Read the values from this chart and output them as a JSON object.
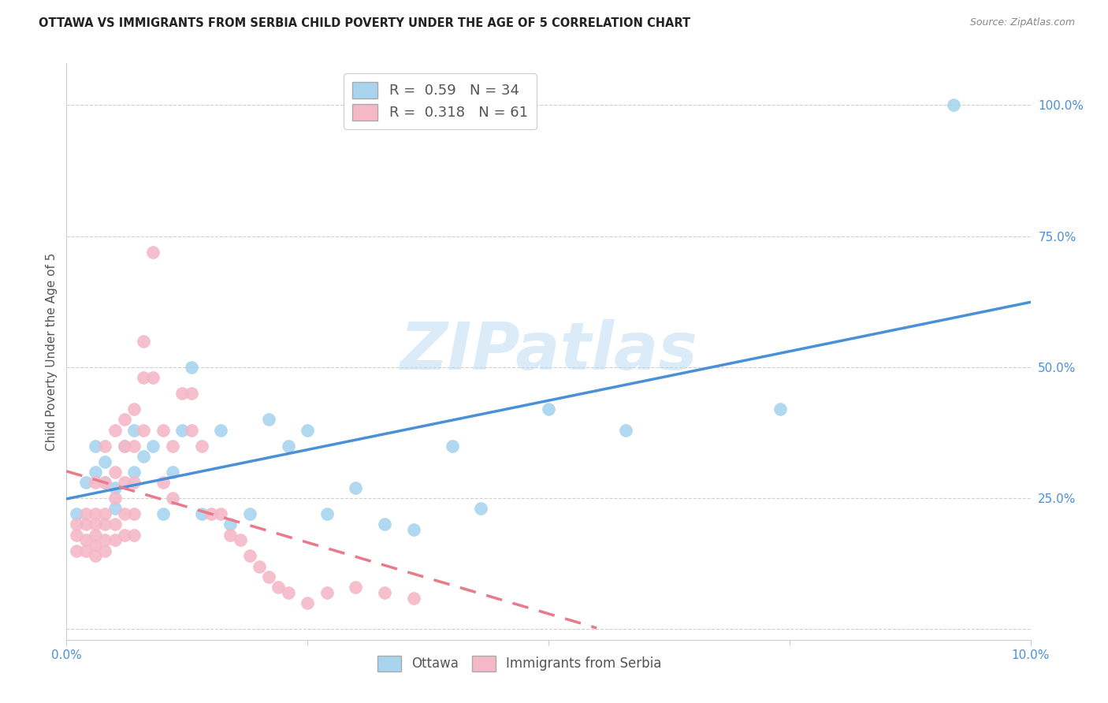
{
  "title": "OTTAWA VS IMMIGRANTS FROM SERBIA CHILD POVERTY UNDER THE AGE OF 5 CORRELATION CHART",
  "source": "Source: ZipAtlas.com",
  "ylabel": "Child Poverty Under the Age of 5",
  "xlim": [
    0.0,
    0.1
  ],
  "ylim": [
    -0.02,
    1.08
  ],
  "yticks": [
    0.0,
    0.25,
    0.5,
    0.75,
    1.0
  ],
  "ytick_labels": [
    "",
    "25.0%",
    "50.0%",
    "75.0%",
    "100.0%"
  ],
  "xticks": [
    0.0,
    0.025,
    0.05,
    0.075,
    0.1
  ],
  "xtick_labels": [
    "0.0%",
    "",
    "",
    "",
    "10.0%"
  ],
  "watermark": "ZIPatlas",
  "ottawa_color": "#a8d4f0",
  "serbia_color": "#f5b8c8",
  "ottawa_line_color": "#4a90d9",
  "serbia_line_color": "#e87a8a",
  "ottawa_R": 0.59,
  "ottawa_N": 34,
  "serbia_R": 0.318,
  "serbia_N": 61,
  "ottawa_scatter_x": [
    0.001,
    0.002,
    0.003,
    0.003,
    0.004,
    0.004,
    0.005,
    0.005,
    0.006,
    0.007,
    0.007,
    0.008,
    0.009,
    0.01,
    0.011,
    0.012,
    0.013,
    0.014,
    0.016,
    0.017,
    0.019,
    0.021,
    0.023,
    0.025,
    0.027,
    0.03,
    0.033,
    0.036,
    0.04,
    0.043,
    0.05,
    0.058,
    0.074,
    0.092
  ],
  "ottawa_scatter_y": [
    0.22,
    0.28,
    0.3,
    0.35,
    0.32,
    0.28,
    0.23,
    0.27,
    0.35,
    0.3,
    0.38,
    0.33,
    0.35,
    0.22,
    0.3,
    0.38,
    0.5,
    0.22,
    0.38,
    0.2,
    0.22,
    0.4,
    0.35,
    0.38,
    0.22,
    0.27,
    0.2,
    0.19,
    0.35,
    0.23,
    0.42,
    0.38,
    0.42,
    1.0
  ],
  "serbia_scatter_x": [
    0.001,
    0.001,
    0.001,
    0.002,
    0.002,
    0.002,
    0.002,
    0.003,
    0.003,
    0.003,
    0.003,
    0.003,
    0.003,
    0.004,
    0.004,
    0.004,
    0.004,
    0.004,
    0.004,
    0.005,
    0.005,
    0.005,
    0.005,
    0.005,
    0.006,
    0.006,
    0.006,
    0.006,
    0.006,
    0.007,
    0.007,
    0.007,
    0.007,
    0.007,
    0.008,
    0.008,
    0.008,
    0.009,
    0.009,
    0.01,
    0.01,
    0.011,
    0.011,
    0.012,
    0.013,
    0.013,
    0.014,
    0.015,
    0.016,
    0.017,
    0.018,
    0.019,
    0.02,
    0.021,
    0.022,
    0.023,
    0.025,
    0.027,
    0.03,
    0.033,
    0.036
  ],
  "serbia_scatter_y": [
    0.2,
    0.18,
    0.15,
    0.22,
    0.2,
    0.17,
    0.15,
    0.28,
    0.22,
    0.2,
    0.18,
    0.16,
    0.14,
    0.35,
    0.28,
    0.22,
    0.2,
    0.17,
    0.15,
    0.38,
    0.3,
    0.25,
    0.2,
    0.17,
    0.4,
    0.35,
    0.28,
    0.22,
    0.18,
    0.42,
    0.35,
    0.28,
    0.22,
    0.18,
    0.55,
    0.48,
    0.38,
    0.72,
    0.48,
    0.38,
    0.28,
    0.35,
    0.25,
    0.45,
    0.45,
    0.38,
    0.35,
    0.22,
    0.22,
    0.18,
    0.17,
    0.14,
    0.12,
    0.1,
    0.08,
    0.07,
    0.05,
    0.07,
    0.08,
    0.07,
    0.06
  ],
  "background_color": "#ffffff",
  "grid_color": "#d0d0d0",
  "title_fontsize": 10.5,
  "axis_label_fontsize": 11,
  "tick_fontsize": 11,
  "tick_color": "#4a90d9",
  "source_color": "#888888"
}
